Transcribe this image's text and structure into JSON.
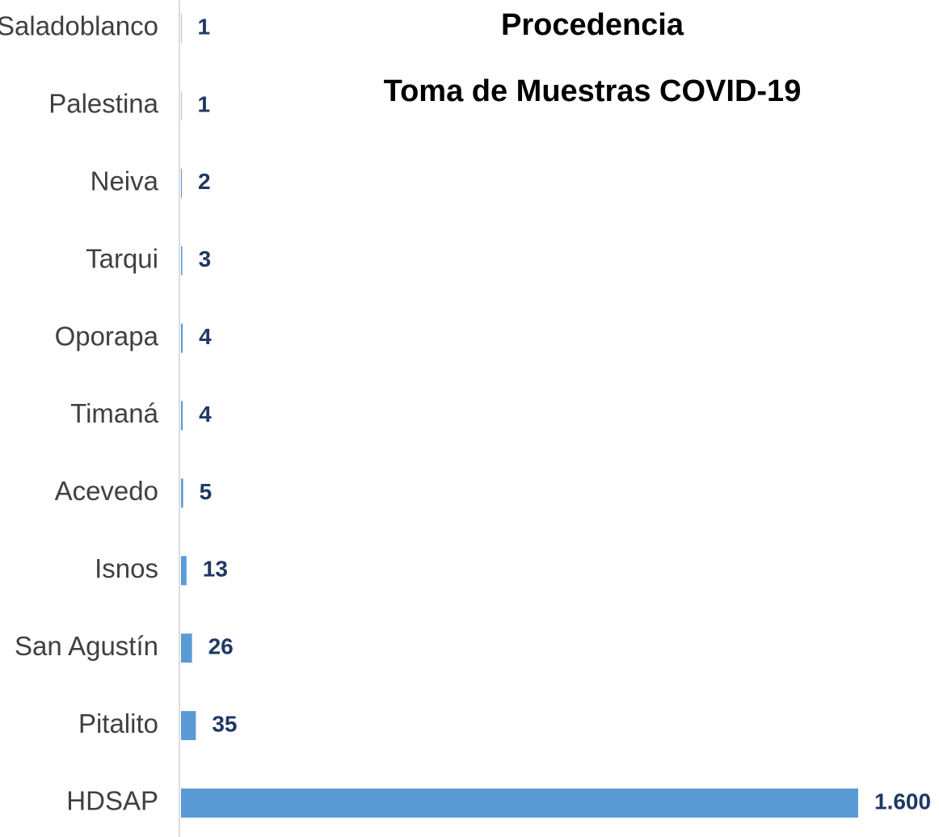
{
  "chart_data": {
    "type": "hbar",
    "title": "Procedencia",
    "subtitle": "Toma de Muestras COVID-19",
    "categories": [
      "Saladoblanco",
      "Palestina",
      "Neiva",
      "Tarqui",
      "Oporapa",
      "Timaná",
      "Acevedo",
      "Isnos",
      "San Agustín",
      "Pitalito",
      "HDSAP"
    ],
    "values": [
      1,
      1,
      2,
      3,
      4,
      4,
      5,
      13,
      26,
      35,
      1600
    ],
    "value_labels": [
      "1",
      "1",
      "2",
      "3",
      "4",
      "4",
      "5",
      "13",
      "26",
      "35",
      "1.600"
    ],
    "color": "#5b9bd5",
    "xlim": [
      0,
      1600
    ]
  }
}
